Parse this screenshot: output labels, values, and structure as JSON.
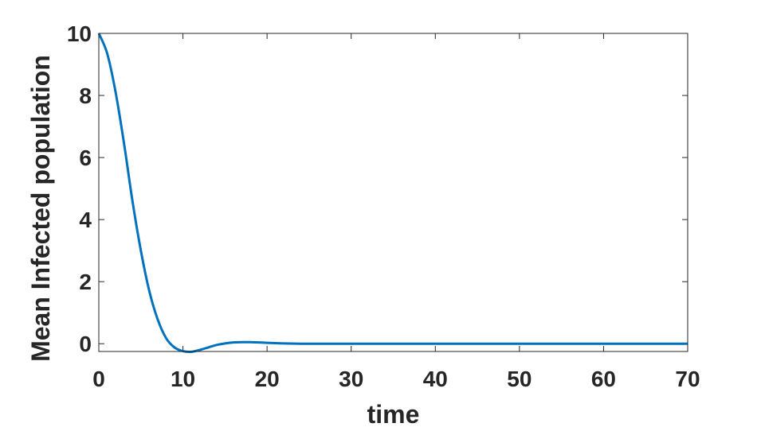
{
  "chart_data": {
    "type": "line",
    "title": "",
    "xlabel": "time",
    "ylabel": "Mean Infected population",
    "xlim": [
      0,
      70
    ],
    "ylim": [
      -0.25,
      10
    ],
    "xticks": [
      0,
      10,
      20,
      30,
      40,
      50,
      60,
      70
    ],
    "yticks": [
      0,
      2,
      4,
      6,
      8,
      10
    ],
    "xtick_labels": [
      "0",
      "10",
      "20",
      "30",
      "40",
      "50",
      "60",
      "70"
    ],
    "ytick_labels": [
      "0",
      "2",
      "4",
      "6",
      "8",
      "10"
    ],
    "grid": false,
    "box": true,
    "series": [
      {
        "color": "#0072BD",
        "x": [
          0,
          1,
          2,
          3,
          4,
          5,
          6,
          7,
          8,
          9,
          10,
          11,
          12,
          13,
          14,
          15,
          16,
          17,
          18,
          19,
          20,
          22,
          24,
          26,
          28,
          30,
          35,
          40,
          45,
          50,
          55,
          60,
          65,
          70
        ],
        "y": [
          10.0,
          9.35,
          8.1,
          6.45,
          4.6,
          3.0,
          1.7,
          0.78,
          0.18,
          -0.12,
          -0.24,
          -0.26,
          -0.2,
          -0.12,
          -0.04,
          0.01,
          0.04,
          0.05,
          0.05,
          0.04,
          0.03,
          0.01,
          0.0,
          0.0,
          0.0,
          0.0,
          0.0,
          0.0,
          0.0,
          0.0,
          0.0,
          0.0,
          0.0,
          0.0
        ]
      }
    ]
  }
}
